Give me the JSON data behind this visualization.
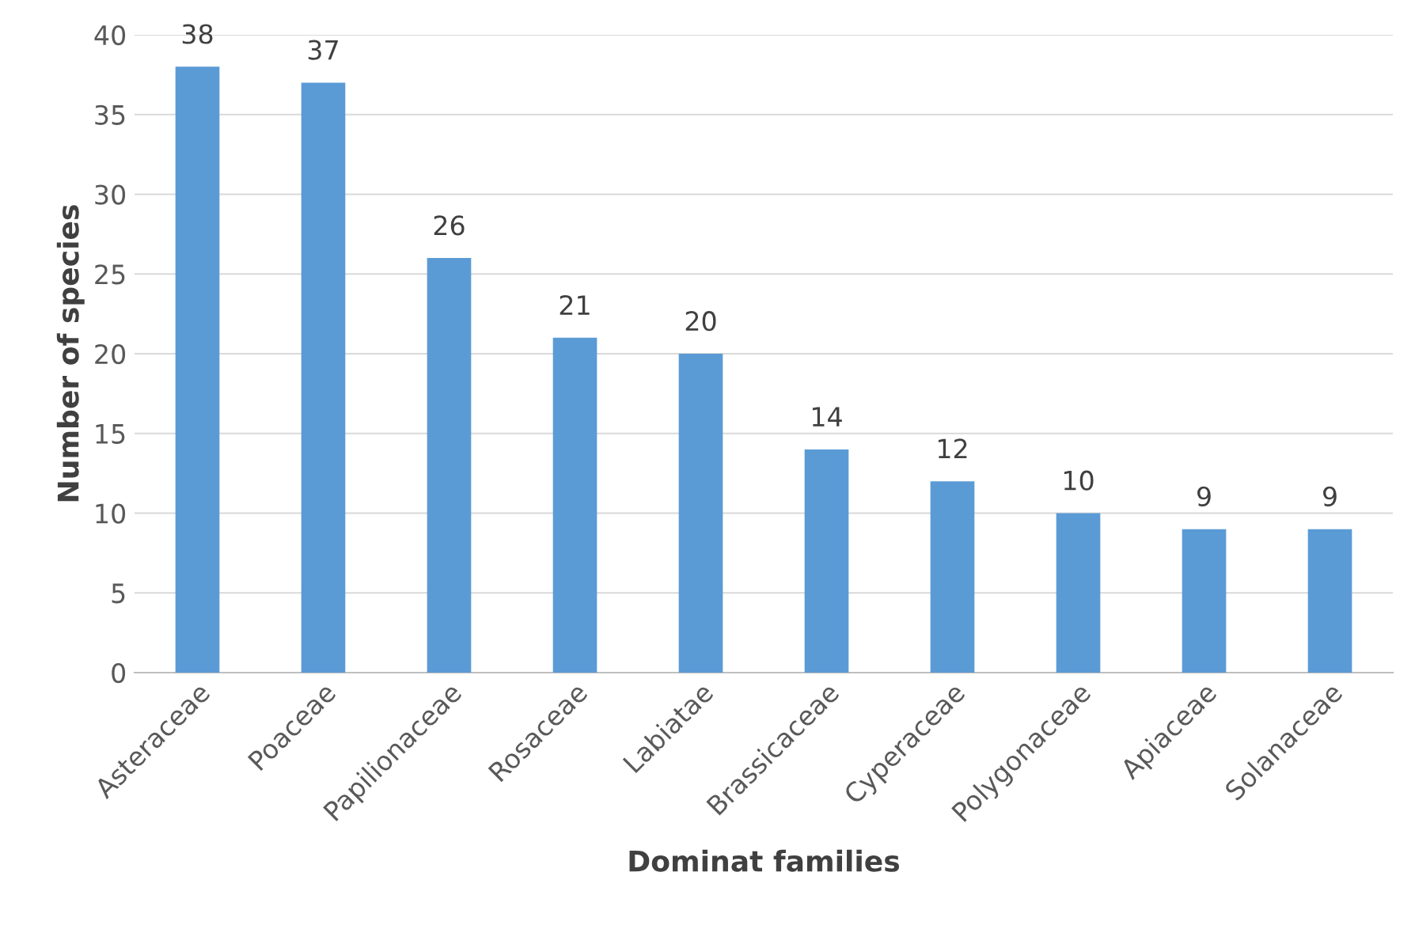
{
  "chart_data": {
    "type": "bar",
    "xlabel": "Dominat families",
    "ylabel": "Number of species",
    "categories": [
      "Asteraceae",
      "Poaceae",
      "Papilionaceae",
      "Rosaceae",
      "Labiatae",
      "Brassicaceae",
      "Cyperaceae",
      "Polygonaceae",
      "Apiaceae",
      "Solanaceae"
    ],
    "values": [
      38,
      37,
      26,
      21,
      20,
      14,
      12,
      10,
      9,
      9
    ],
    "color": "#5b9bd5",
    "ylim": [
      0,
      40
    ],
    "yticks": [
      0,
      5,
      10,
      15,
      20,
      25,
      30,
      35,
      40
    ],
    "grid": "y",
    "data_labels": true
  }
}
